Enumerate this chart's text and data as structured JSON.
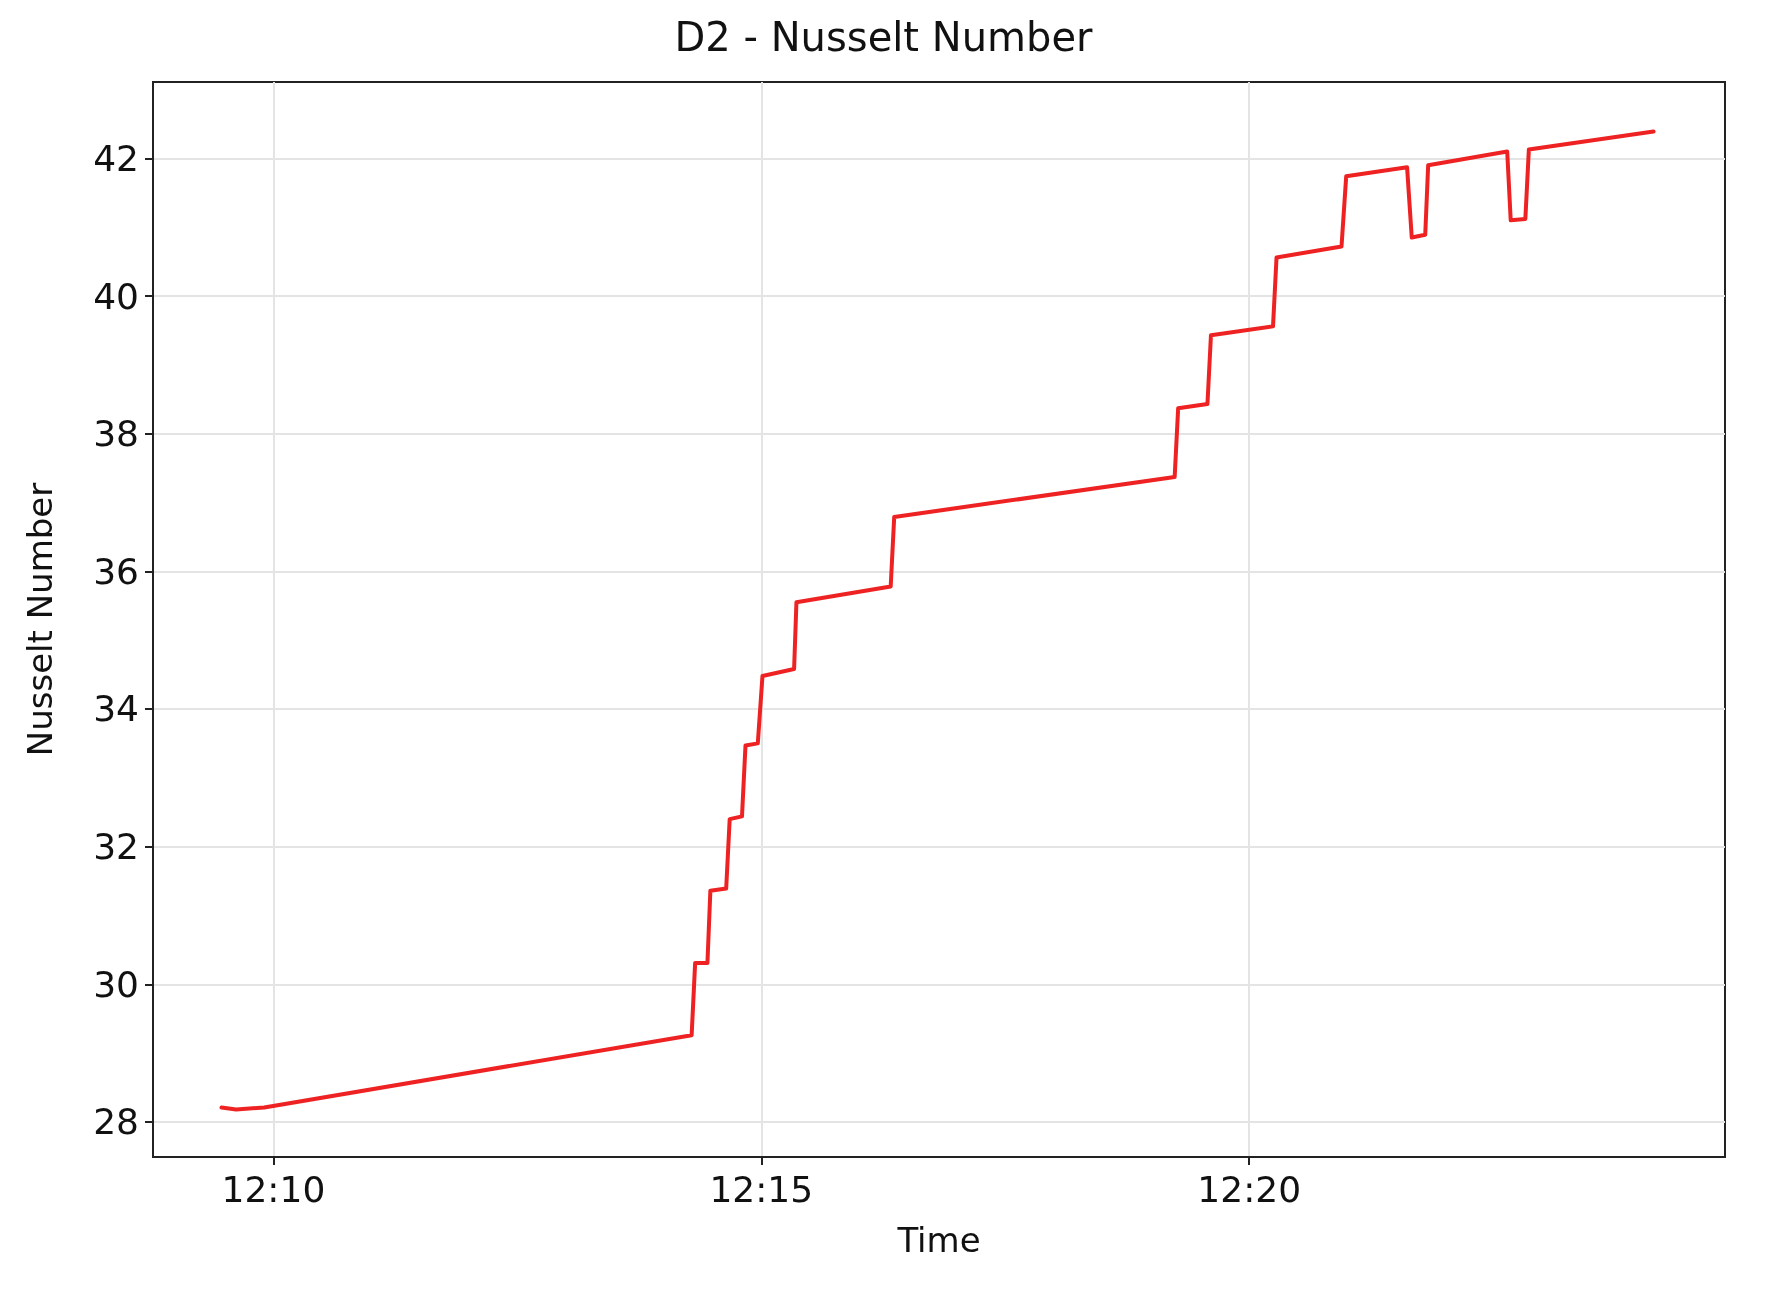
{
  "chart_data": {
    "type": "line",
    "title": "D2 - Nusselt Number",
    "xlabel": "Time",
    "ylabel": "Nusselt Number",
    "x": [
      12.1578,
      12.1603,
      12.1651,
      12.2381,
      12.2387,
      12.2408,
      12.2413,
      12.244,
      12.2446,
      12.2467,
      12.2473,
      12.2494,
      12.2502,
      12.2556,
      12.256,
      12.2721,
      12.2727,
      12.3206,
      12.3212,
      12.3262,
      12.3268,
      12.3374,
      12.338,
      12.3491,
      12.3499,
      12.3603,
      12.3611,
      12.3634,
      12.3639,
      12.3774,
      12.378,
      12.3805,
      12.3811,
      12.4024
    ],
    "series": [
      {
        "color": "#ee2222",
        "values": [
          28.21,
          28.18,
          28.21,
          29.26,
          30.31,
          30.31,
          31.36,
          31.39,
          32.4,
          32.44,
          33.47,
          33.5,
          34.48,
          34.58,
          35.55,
          35.78,
          36.79,
          37.37,
          38.37,
          38.43,
          39.43,
          39.56,
          40.56,
          40.72,
          41.74,
          41.87,
          40.85,
          40.89,
          41.9,
          42.1,
          41.1,
          41.12,
          42.13,
          42.39
        ]
      }
    ],
    "xlim": [
      12.1461,
      12.4146
    ],
    "ylim": [
      27.49,
      43.11
    ],
    "xticks": [
      {
        "value": 12.166667,
        "label": "12:10"
      },
      {
        "value": 12.25,
        "label": "12:15"
      },
      {
        "value": 12.333333,
        "label": "12:20"
      }
    ],
    "yticks": [
      28,
      30,
      32,
      34,
      36,
      38,
      40,
      42
    ],
    "grid": true,
    "marker": "none",
    "line_style": "solid"
  }
}
